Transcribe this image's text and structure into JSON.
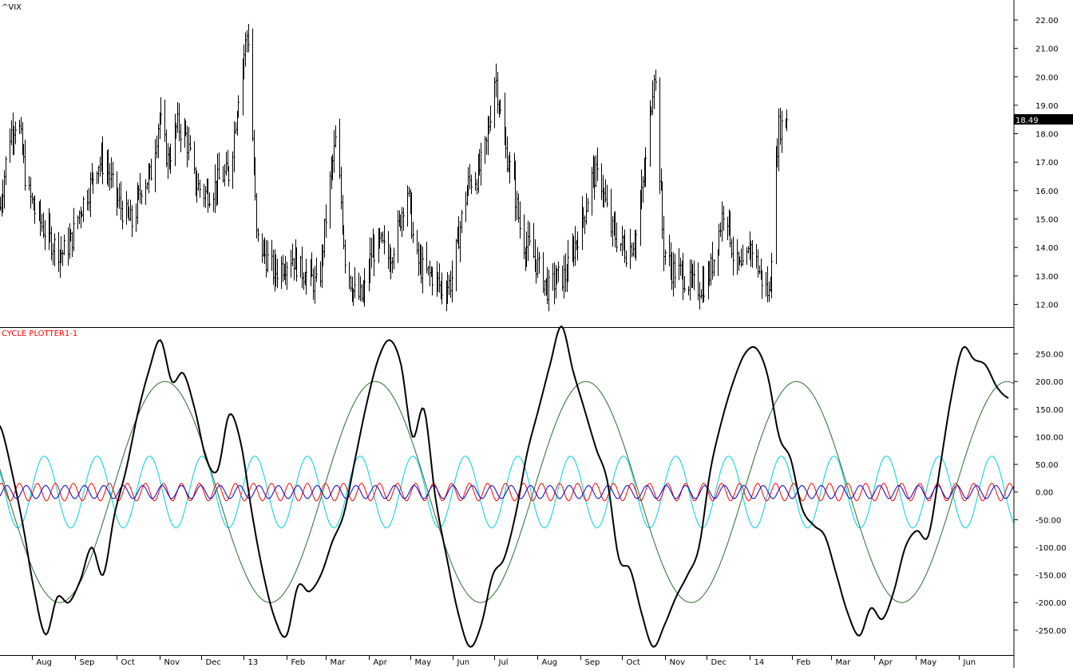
{
  "colors": {
    "background": "#ffffff",
    "axis": "#000000",
    "price_bars": "#000000",
    "price_badge_bg": "#000000",
    "price_badge_text": "#ffffff",
    "indicator_label": "#ff0000"
  },
  "chart_data": [
    {
      "type": "bar",
      "subtype": "ohlc",
      "title": "^VIX",
      "y_axis_side": "right",
      "ylim": [
        11.2,
        22.7
      ],
      "y_ticks": [
        "12.00",
        "13.00",
        "14.00",
        "15.00",
        "16.00",
        "17.00",
        "18.00",
        "19.00",
        "20.00",
        "21.00",
        "22.00"
      ],
      "y_tick_values": [
        12,
        13,
        14,
        15,
        16,
        17,
        18,
        19,
        20,
        21,
        22
      ],
      "last_value": 18.49,
      "last_value_label": "18.49",
      "x_tick_labels": [
        "Aug",
        "Sep",
        "Oct",
        "Nov",
        "Dec",
        "13",
        "Feb",
        "Mar",
        "Apr",
        "May",
        "Jun",
        "Jul",
        "Aug",
        "Sep",
        "Oct",
        "Nov",
        "Dec",
        "14",
        "Feb",
        "Mar",
        "Apr",
        "May",
        "Jun"
      ],
      "x_range": [
        "2012-07-09",
        "2014-07-11"
      ],
      "x_month_starts": [
        "2012-08-01",
        "2012-09-01",
        "2012-10-01",
        "2012-11-01",
        "2012-12-01",
        "2013-01-01",
        "2013-02-01",
        "2013-03-01",
        "2013-04-01",
        "2013-05-01",
        "2013-06-01",
        "2013-07-01",
        "2013-08-01",
        "2013-09-01",
        "2013-10-01",
        "2013-11-01",
        "2013-12-01",
        "2014-01-01",
        "2014-02-01",
        "2014-03-01",
        "2014-04-01",
        "2014-05-01",
        "2014-06-01"
      ],
      "data_range": [
        "2012-07-09",
        "2014-01-28"
      ],
      "weekly_closes": [
        15.4,
        17.9,
        18.6,
        16.1,
        15.2,
        14.6,
        14.1,
        13.8,
        14.2,
        15.3,
        16.0,
        17.0,
        16.9,
        15.8,
        15.2,
        14.8,
        16.2,
        16.5,
        18.6,
        17.0,
        18.3,
        17.9,
        16.3,
        15.9,
        16.0,
        16.5,
        16.6,
        19.6,
        21.7,
        14.3,
        13.7,
        13.1,
        13.4,
        13.7,
        13.2,
        13.0,
        12.5,
        15.6,
        17.9,
        13.7,
        12.4,
        12.2,
        13.8,
        14.1,
        13.6,
        14.6,
        16.2,
        13.6,
        13.1,
        13.0,
        12.5,
        12.8,
        14.7,
        16.3,
        16.5,
        17.6,
        20.1,
        17.6,
        16.4,
        14.2,
        13.9,
        13.2,
        12.5,
        12.9,
        13.0,
        14.1,
        15.1,
        16.6,
        16.3,
        14.7,
        14.2,
        13.8,
        14.5,
        16.9,
        20.4,
        14.0,
        13.2,
        13.1,
        12.7,
        12.6,
        12.8,
        14.0,
        15.7,
        13.5,
        13.1,
        14.1,
        13.0,
        12.3,
        18.2,
        18.49
      ]
    },
    {
      "type": "line",
      "title": "CYCLE PLOTTER1-1",
      "y_axis_side": "right",
      "ylim": [
        -295,
        297
      ],
      "y_ticks": [
        "250.00",
        "200.00",
        "150.00",
        "100.00",
        "50.00",
        "0.00",
        "-50.00",
        "-100.00",
        "-150.00",
        "-200.00",
        "-250.00"
      ],
      "y_tick_values": [
        250,
        200,
        150,
        100,
        50,
        0,
        -50,
        -100,
        -150,
        -200,
        -250
      ],
      "x_range": [
        "2012-07-09",
        "2014-07-11"
      ],
      "series": [
        {
          "color": "#000000",
          "x_range": [
            "2012-07-09",
            "2014-07-07"
          ],
          "values": [
            120,
            40,
            -60,
            -180,
            -258,
            -190,
            -200,
            -160,
            -100,
            -150,
            -40,
            40,
            140,
            220,
            275,
            200,
            215,
            150,
            60,
            40,
            140,
            90,
            -40,
            -150,
            -230,
            -260,
            -170,
            -180,
            -150,
            -90,
            -40,
            60,
            160,
            240,
            275,
            230,
            100,
            150,
            -10,
            -120,
            -220,
            -280,
            -240,
            -150,
            -120,
            -40,
            70,
            150,
            230,
            300,
            220,
            150,
            80,
            20,
            -120,
            -140,
            -220,
            -280,
            -240,
            -190,
            -150,
            -100,
            40,
            130,
            200,
            250,
            260,
            210,
            100,
            60,
            -30,
            -60,
            -80,
            -150,
            -220,
            -260,
            -210,
            -230,
            -180,
            -100,
            -70,
            -80,
            40,
            170,
            260,
            240,
            230,
            190,
            170
          ]
        },
        {
          "color": "#2e6b2e",
          "period_days": 152,
          "amplitude": 200,
          "peak_date": "2012-11-05"
        },
        {
          "color": "#00d0e0",
          "period_days": 38,
          "amplitude": 65,
          "peak_date": "2012-09-17"
        },
        {
          "color": "#ff0000",
          "period_days": 13,
          "amplitude": 16,
          "peak_date": "2012-07-10"
        },
        {
          "color": "#0000cc",
          "period_days": 14,
          "amplitude": 12,
          "peak_date": "2012-07-14"
        }
      ]
    }
  ]
}
